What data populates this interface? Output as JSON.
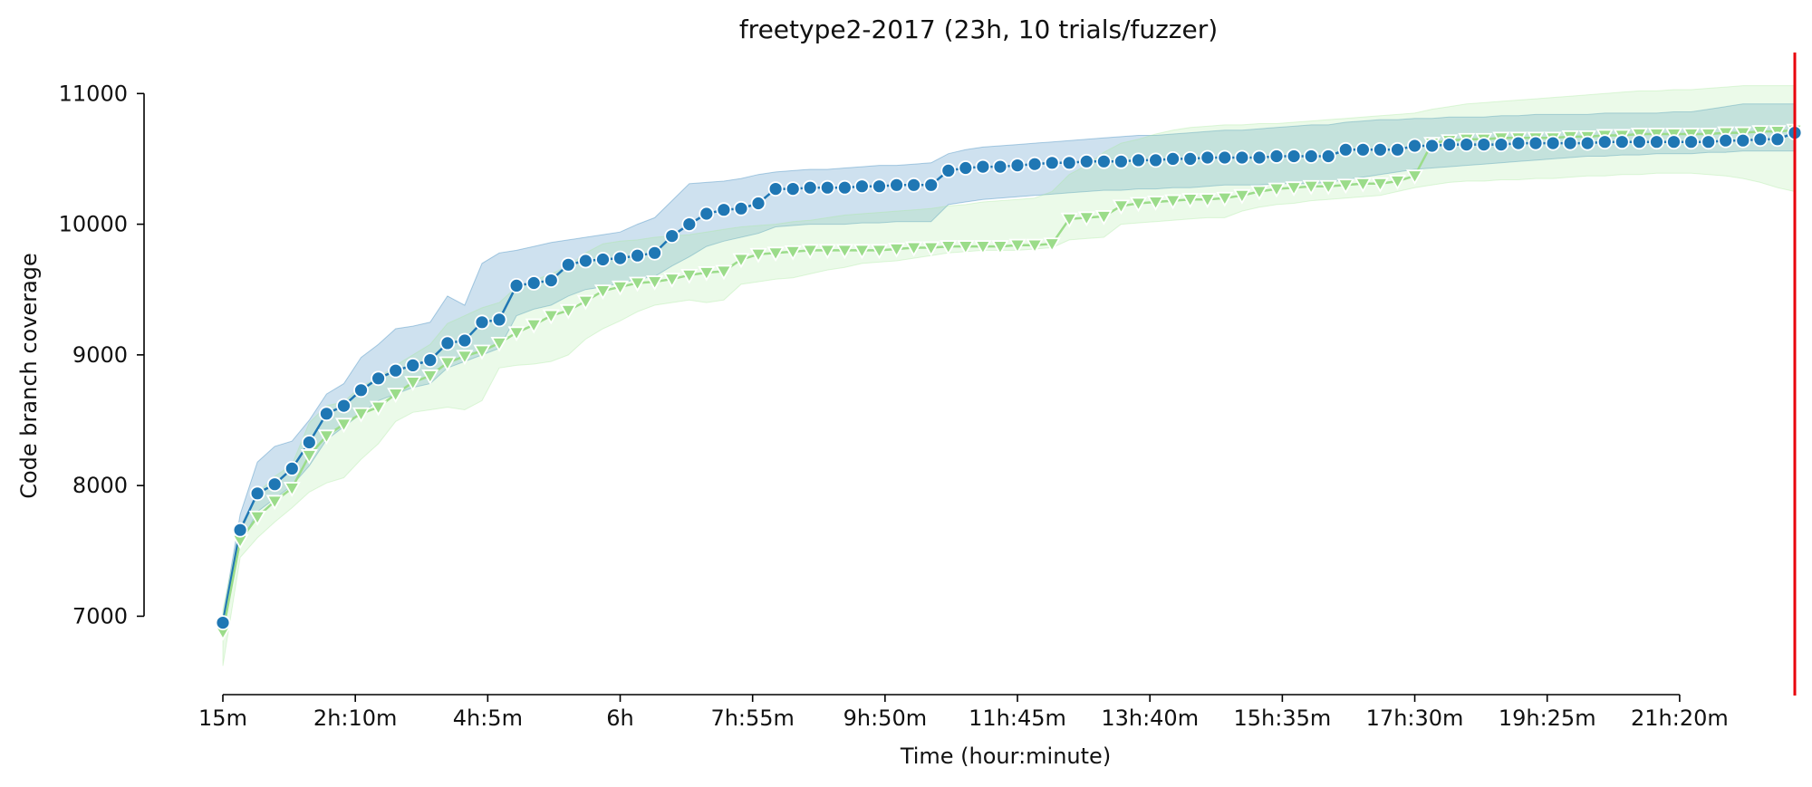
{
  "chart_data": {
    "type": "line",
    "title": "freetype2-2017 (23h, 10 trials/fuzzer)",
    "xlabel": "Time (hour:minute)",
    "ylabel": "Code branch coverage",
    "x_unit": "minutes",
    "xlim": [
      15,
      1380
    ],
    "ylim": [
      6400,
      11300
    ],
    "x_ticks": [
      {
        "value": 15,
        "label": "15m"
      },
      {
        "value": 130,
        "label": "2h:10m"
      },
      {
        "value": 245,
        "label": "4h:5m"
      },
      {
        "value": 360,
        "label": "6h"
      },
      {
        "value": 475,
        "label": "7h:55m"
      },
      {
        "value": 590,
        "label": "9h:50m"
      },
      {
        "value": 705,
        "label": "11h:45m"
      },
      {
        "value": 820,
        "label": "13h:40m"
      },
      {
        "value": 935,
        "label": "15h:35m"
      },
      {
        "value": 1050,
        "label": "17h:30m"
      },
      {
        "value": 1165,
        "label": "19h:25m"
      },
      {
        "value": 1280,
        "label": "21h:20m"
      }
    ],
    "y_ticks": [
      7000,
      8000,
      9000,
      10000,
      11000
    ],
    "grid": false,
    "vline": {
      "x": 1380,
      "color": "#e8000b"
    },
    "series": [
      {
        "color": "#1f77b4",
        "band_color": "#1f77b4",
        "marker": "circle",
        "x": [
          15,
          30,
          45,
          60,
          75,
          90,
          105,
          120,
          135,
          150,
          165,
          180,
          195,
          210,
          225,
          240,
          255,
          270,
          285,
          300,
          315,
          330,
          345,
          360,
          375,
          390,
          405,
          420,
          435,
          450,
          465,
          480,
          495,
          510,
          525,
          540,
          555,
          570,
          585,
          600,
          615,
          630,
          645,
          660,
          675,
          690,
          705,
          720,
          735,
          750,
          765,
          780,
          795,
          810,
          825,
          840,
          855,
          870,
          885,
          900,
          915,
          930,
          945,
          960,
          975,
          990,
          1005,
          1020,
          1035,
          1050,
          1065,
          1080,
          1095,
          1110,
          1125,
          1140,
          1155,
          1170,
          1185,
          1200,
          1215,
          1230,
          1245,
          1260,
          1275,
          1290,
          1305,
          1320,
          1335,
          1350,
          1365,
          1380
        ],
        "values": [
          6950,
          7660,
          7940,
          8010,
          8130,
          8330,
          8550,
          8610,
          8730,
          8820,
          8880,
          8920,
          8960,
          9090,
          9110,
          9250,
          9270,
          9530,
          9550,
          9570,
          9690,
          9720,
          9730,
          9740,
          9760,
          9780,
          9910,
          10000,
          10080,
          10110,
          10120,
          10160,
          10270,
          10270,
          10280,
          10280,
          10280,
          10290,
          10290,
          10300,
          10300,
          10300,
          10410,
          10430,
          10440,
          10440,
          10450,
          10460,
          10470,
          10470,
          10480,
          10480,
          10480,
          10490,
          10490,
          10500,
          10500,
          10510,
          10510,
          10510,
          10510,
          10520,
          10520,
          10520,
          10520,
          10570,
          10570,
          10570,
          10570,
          10600,
          10600,
          10610,
          10610,
          10610,
          10610,
          10620,
          10620,
          10620,
          10620,
          10620,
          10630,
          10630,
          10630,
          10630,
          10630,
          10630,
          10630,
          10640,
          10640,
          10650,
          10650,
          10700
        ],
        "lower": [
          6900,
          7550,
          7800,
          7900,
          8000,
          8150,
          8350,
          8450,
          8550,
          8650,
          8700,
          8750,
          8780,
          8900,
          8950,
          9000,
          9050,
          9300,
          9350,
          9380,
          9450,
          9500,
          9520,
          9550,
          9580,
          9600,
          9680,
          9750,
          9830,
          9870,
          9900,
          9930,
          9980,
          9990,
          10000,
          10000,
          10000,
          10010,
          10010,
          10020,
          10020,
          10020,
          10150,
          10170,
          10190,
          10200,
          10210,
          10220,
          10230,
          10240,
          10250,
          10260,
          10260,
          10270,
          10270,
          10280,
          10280,
          10290,
          10300,
          10300,
          10300,
          10310,
          10310,
          10310,
          10320,
          10340,
          10360,
          10380,
          10400,
          10420,
          10430,
          10440,
          10450,
          10460,
          10470,
          10480,
          10490,
          10500,
          10510,
          10520,
          10520,
          10530,
          10530,
          10540,
          10540,
          10540,
          10550,
          10550,
          10560,
          10560,
          10560,
          10560
        ],
        "upper": [
          7000,
          7780,
          8180,
          8300,
          8340,
          8500,
          8700,
          8780,
          8980,
          9080,
          9200,
          9220,
          9250,
          9450,
          9380,
          9700,
          9780,
          9800,
          9830,
          9860,
          9880,
          9900,
          9920,
          9940,
          10000,
          10050,
          10180,
          10310,
          10320,
          10330,
          10350,
          10380,
          10400,
          10410,
          10420,
          10420,
          10430,
          10440,
          10450,
          10450,
          10460,
          10470,
          10540,
          10570,
          10590,
          10600,
          10610,
          10620,
          10630,
          10640,
          10650,
          10660,
          10670,
          10680,
          10680,
          10690,
          10700,
          10710,
          10720,
          10720,
          10730,
          10740,
          10750,
          10760,
          10760,
          10780,
          10790,
          10800,
          10800,
          10810,
          10810,
          10820,
          10820,
          10820,
          10830,
          10830,
          10840,
          10840,
          10840,
          10840,
          10850,
          10850,
          10850,
          10850,
          10860,
          10860,
          10880,
          10900,
          10920,
          10920,
          10920,
          10920
        ]
      },
      {
        "color": "#9bdc8a",
        "band_color": "#a6e89a",
        "marker": "triangle-down",
        "x": [
          15,
          30,
          45,
          60,
          75,
          90,
          105,
          120,
          135,
          150,
          165,
          180,
          195,
          210,
          225,
          240,
          255,
          270,
          285,
          300,
          315,
          330,
          345,
          360,
          375,
          390,
          405,
          420,
          435,
          450,
          465,
          480,
          495,
          510,
          525,
          540,
          555,
          570,
          585,
          600,
          615,
          630,
          645,
          660,
          675,
          690,
          705,
          720,
          735,
          750,
          765,
          780,
          795,
          810,
          825,
          840,
          855,
          870,
          885,
          900,
          915,
          930,
          945,
          960,
          975,
          990,
          1005,
          1020,
          1035,
          1050,
          1065,
          1080,
          1095,
          1110,
          1125,
          1140,
          1155,
          1170,
          1185,
          1200,
          1215,
          1230,
          1245,
          1260,
          1275,
          1290,
          1305,
          1320,
          1335,
          1350,
          1365,
          1380
        ],
        "values": [
          6880,
          7580,
          7760,
          7880,
          7980,
          8230,
          8380,
          8470,
          8550,
          8600,
          8700,
          8790,
          8840,
          8940,
          8990,
          9030,
          9090,
          9170,
          9230,
          9300,
          9340,
          9410,
          9490,
          9520,
          9550,
          9560,
          9580,
          9610,
          9630,
          9640,
          9730,
          9770,
          9780,
          9790,
          9800,
          9800,
          9800,
          9800,
          9800,
          9810,
          9820,
          9820,
          9830,
          9830,
          9830,
          9830,
          9840,
          9840,
          9850,
          10040,
          10050,
          10060,
          10140,
          10160,
          10170,
          10180,
          10190,
          10190,
          10200,
          10220,
          10250,
          10270,
          10280,
          10290,
          10290,
          10300,
          10310,
          10310,
          10330,
          10370,
          10620,
          10640,
          10650,
          10650,
          10660,
          10660,
          10660,
          10660,
          10670,
          10670,
          10680,
          10680,
          10690,
          10690,
          10690,
          10690,
          10690,
          10700,
          10700,
          10710,
          10710,
          10720
        ],
        "lower": [
          6620,
          7450,
          7600,
          7720,
          7830,
          7950,
          8020,
          8060,
          8200,
          8320,
          8490,
          8560,
          8580,
          8600,
          8580,
          8650,
          8900,
          8920,
          8930,
          8950,
          9000,
          9120,
          9200,
          9260,
          9330,
          9380,
          9400,
          9420,
          9400,
          9420,
          9540,
          9560,
          9580,
          9590,
          9620,
          9650,
          9670,
          9700,
          9710,
          9720,
          9740,
          9760,
          9780,
          9790,
          9800,
          9800,
          9800,
          9810,
          9820,
          9880,
          9890,
          9900,
          10000,
          10010,
          10020,
          10030,
          10040,
          10050,
          10050,
          10100,
          10130,
          10150,
          10160,
          10180,
          10190,
          10200,
          10210,
          10220,
          10250,
          10280,
          10300,
          10320,
          10330,
          10330,
          10340,
          10340,
          10350,
          10350,
          10360,
          10370,
          10370,
          10380,
          10380,
          10390,
          10390,
          10390,
          10380,
          10370,
          10350,
          10320,
          10280,
          10250
        ],
        "upper": [
          7050,
          7680,
          7940,
          8070,
          8160,
          8480,
          8610,
          8640,
          8760,
          8820,
          8920,
          9000,
          9080,
          9240,
          9300,
          9360,
          9400,
          9520,
          9570,
          9620,
          9680,
          9780,
          9850,
          9870,
          9880,
          9900,
          9910,
          9920,
          9940,
          9960,
          9980,
          9990,
          10000,
          10020,
          10030,
          10050,
          10070,
          10080,
          10090,
          10100,
          10110,
          10120,
          10140,
          10150,
          10170,
          10180,
          10190,
          10200,
          10250,
          10380,
          10450,
          10550,
          10620,
          10650,
          10690,
          10720,
          10740,
          10750,
          10760,
          10760,
          10770,
          10770,
          10780,
          10790,
          10800,
          10810,
          10820,
          10830,
          10840,
          10850,
          10880,
          10900,
          10920,
          10930,
          10940,
          10950,
          10960,
          10970,
          10980,
          10990,
          11000,
          11010,
          11020,
          11020,
          11030,
          11030,
          11040,
          11050,
          11060,
          11060,
          11060,
          11060
        ]
      }
    ]
  }
}
